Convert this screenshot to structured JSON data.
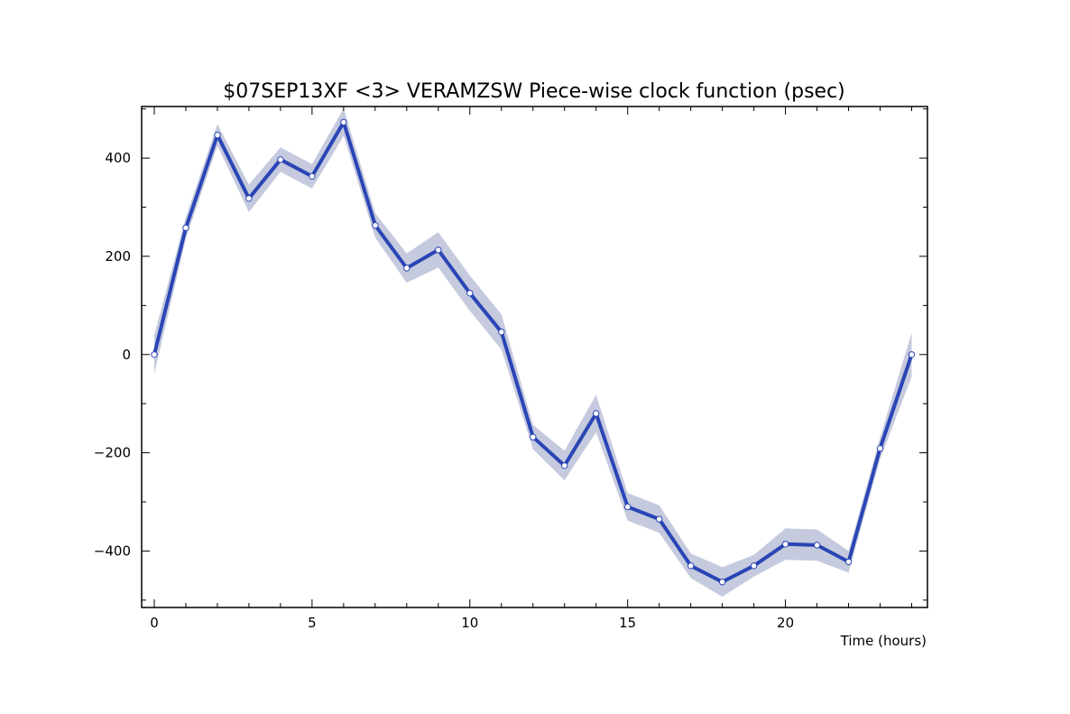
{
  "chart_data": {
    "type": "line",
    "title": "$07SEP13XF <3>  VERAMZSW  Piece-wise clock function (psec)",
    "xlabel": "Time (hours)",
    "ylabel": "",
    "xlim": [
      -0.4,
      24.5
    ],
    "ylim": [
      -515,
      505
    ],
    "x_ticks": [
      0,
      5,
      10,
      15,
      20
    ],
    "y_ticks": [
      -400,
      -200,
      0,
      200,
      400
    ],
    "x_tick_labels": [
      "0",
      "5",
      "10",
      "15",
      "20"
    ],
    "y_tick_labels": [
      "−400",
      "−200",
      "0",
      "200",
      "400"
    ],
    "grid": false,
    "series": [
      {
        "x": [
          0,
          1,
          2,
          3,
          4,
          5,
          6,
          7,
          8,
          9,
          10,
          11,
          12,
          13,
          14,
          15,
          16,
          17,
          18,
          19,
          20,
          21,
          22,
          23,
          24
        ],
        "y": [
          0,
          258,
          447,
          318,
          397,
          363,
          473,
          263,
          176,
          213,
          125,
          46,
          -168,
          -226,
          -120,
          -310,
          -335,
          -430,
          -463,
          -430,
          -386,
          -388,
          -422,
          -191,
          0
        ],
        "uncertainty": [
          40,
          22,
          22,
          28,
          25,
          25,
          28,
          25,
          30,
          36,
          36,
          36,
          25,
          30,
          38,
          28,
          28,
          25,
          30,
          22,
          32,
          32,
          22,
          22,
          45
        ]
      }
    ],
    "colors": {
      "line": "#2a45b5",
      "band": "#c5cade",
      "marker_fill": "#ffffff",
      "marker_edge": "#2a45b5",
      "axes": "#000000"
    }
  }
}
